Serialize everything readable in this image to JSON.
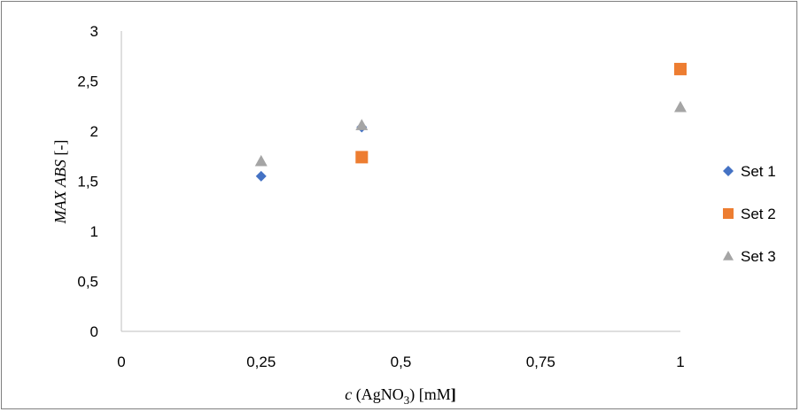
{
  "chart_data": {
    "type": "scatter",
    "title": "",
    "xlabel": {
      "var": "c",
      "open": " (AgNO",
      "sub": "3",
      "mid": ") [mM",
      "close": "]"
    },
    "ylabel": {
      "var": "MAX ABS",
      "rest": " [-]"
    },
    "xlim": [
      0,
      1
    ],
    "ylim": [
      0,
      3
    ],
    "x_ticks": [
      "0",
      "0,25",
      "0,5",
      "0,75",
      "1"
    ],
    "y_ticks": [
      "0",
      "0,5",
      "1",
      "1,5",
      "2",
      "2,5",
      "3"
    ],
    "grid": false,
    "legend_position": "right",
    "series": [
      {
        "name": "Set 1",
        "marker": "diamond",
        "color": "#4472C4",
        "points": [
          {
            "x": 0.25,
            "y": 1.55
          },
          {
            "x": 0.43,
            "y": 2.04
          }
        ]
      },
      {
        "name": "Set 2",
        "marker": "square",
        "color": "#ED7D31",
        "points": [
          {
            "x": 0.43,
            "y": 1.74
          },
          {
            "x": 1.0,
            "y": 2.62
          }
        ]
      },
      {
        "name": "Set 3",
        "marker": "triangle",
        "color": "#A5A5A5",
        "points": [
          {
            "x": 0.25,
            "y": 1.7
          },
          {
            "x": 0.43,
            "y": 2.06
          },
          {
            "x": 1.0,
            "y": 2.24
          }
        ]
      }
    ]
  }
}
